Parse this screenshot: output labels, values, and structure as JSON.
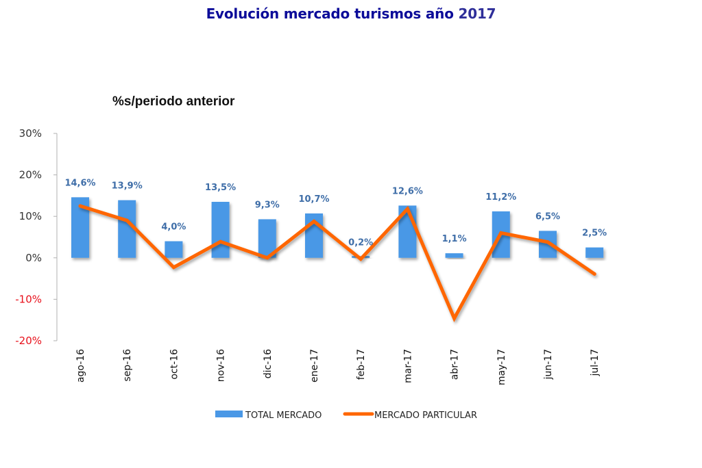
{
  "chart_data": {
    "type": "bar",
    "title": "Evolución mercado turismos año",
    "title_year": "2017",
    "subtitle": "%s/periodo anterior",
    "xlabel": "",
    "ylabel": "",
    "ylim": [
      -20,
      30
    ],
    "yticks": [
      30,
      20,
      10,
      0,
      -10,
      -20
    ],
    "ytick_labels": [
      "30%",
      "20%",
      "10%",
      "0%",
      "-10%",
      "-20%"
    ],
    "categories": [
      "ago-16",
      "sep-16",
      "oct-16",
      "nov-16",
      "dic-16",
      "ene-17",
      "feb-17",
      "mar-17",
      "abr-17",
      "may-17",
      "jun-17",
      "jul-17"
    ],
    "grid": false,
    "legend_position": "bottom",
    "series": [
      {
        "name": "TOTAL MERCADO",
        "type": "bar",
        "color": "#4a98e6",
        "values": [
          14.6,
          13.9,
          4.0,
          13.5,
          9.3,
          10.7,
          0.2,
          12.6,
          1.1,
          11.2,
          6.5,
          2.5
        ],
        "data_labels": [
          "14,6%",
          "13,9%",
          "4,0%",
          "13,5%",
          "9,3%",
          "10,7%",
          "0,2%",
          "12,6%",
          "1,1%",
          "11,2%",
          "6,5%",
          "2,5%"
        ]
      },
      {
        "name": "MERCADO PARTICULAR",
        "type": "line",
        "color": "#ff6600",
        "values": [
          12.5,
          9.0,
          -2.3,
          3.9,
          0.0,
          8.8,
          -0.3,
          11.8,
          -14.6,
          6.0,
          3.8,
          -3.9
        ]
      }
    ],
    "colors": {
      "title": "#0c0c99",
      "negative_tick": "#e8101b",
      "positive_tick": "#333333",
      "data_label": "#3f6ea8"
    }
  }
}
